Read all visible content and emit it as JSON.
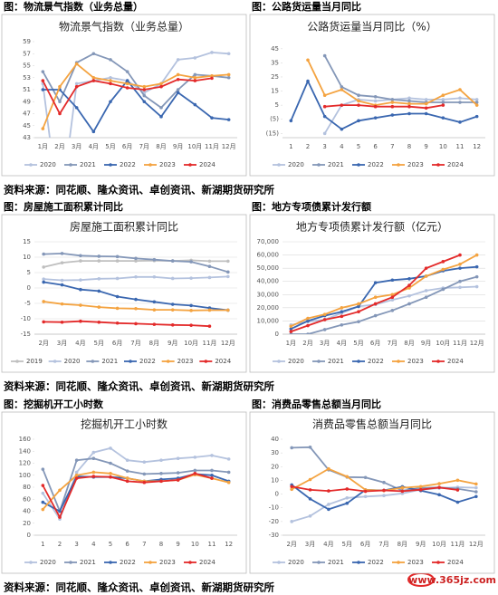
{
  "captions": [
    "图：物流景气指数（业务总量）",
    "图：公路货运量当月同比",
    "图：房屋施工面积累计同比",
    "图：地方专项债累计发行额",
    "图：挖掘机开工小时数",
    "图：消费品零售总额当月同比"
  ],
  "sources": [
    "资料来源：同花顺、隆众资讯、卓创资讯、新湖期货研究所",
    "资料来源：同花顺、隆众资讯、卓创资讯、新湖期货研究所",
    "资料来源：同花顺、隆众资讯、卓创资讯、新湖期货研究所"
  ],
  "watermark": "www.365jz.com",
  "chart_data": [
    {
      "type": "line",
      "title": "物流景气指数（业务总量）",
      "grid": false,
      "legend": "bottom",
      "categories": [
        "1月",
        "2月",
        "3月",
        "4月",
        "5月",
        "6月",
        "7月",
        "8月",
        "9月",
        "10月",
        "11月",
        "12月"
      ],
      "ylim": [
        43,
        59
      ],
      "yticks": [
        43,
        45,
        47,
        49,
        51,
        53,
        55,
        57,
        59
      ],
      "series": [
        {
          "name": "2020",
          "color": "#b4c2de",
          "values": [
            52,
            30,
            52,
            52.5,
            53,
            52.5,
            50.5,
            52,
            56,
            56.3,
            57.2,
            57
          ]
        },
        {
          "name": "2021",
          "color": "#8497b8",
          "values": [
            54,
            49,
            55.5,
            57,
            56,
            54,
            50,
            48,
            51,
            53.5,
            53.3,
            53
          ]
        },
        {
          "name": "2022",
          "color": "#3a67b0",
          "values": [
            51,
            51,
            48,
            44,
            49,
            52.5,
            49,
            46.5,
            50.5,
            48.5,
            46.3,
            46
          ]
        },
        {
          "name": "2023",
          "color": "#f4a340",
          "values": [
            44.5,
            51.5,
            55.3,
            53,
            52.5,
            52,
            51.5,
            52,
            53.5,
            53,
            53.3,
            53.5
          ]
        },
        {
          "name": "2024",
          "color": "#e32a2a",
          "values": [
            52.5,
            47,
            51.5,
            52.5,
            52,
            51.3,
            51,
            51.5,
            52.7,
            52.5,
            52.9,
            null
          ]
        }
      ]
    },
    {
      "type": "line",
      "title": "公路货运量当月同比（%）",
      "grid": false,
      "legend": "bottom",
      "categories": [
        "1",
        "2",
        "3",
        "4",
        "5",
        "6",
        "7",
        "8",
        "9",
        "10",
        "11",
        "12"
      ],
      "ylim": [
        -18,
        50
      ],
      "yticks": [
        {
          "value": -15,
          "label": "(15)"
        },
        {
          "value": -5,
          "label": "(5)"
        },
        5,
        15,
        25,
        35,
        45
      ],
      "series": [
        {
          "name": "2020",
          "color": "#b4c2de",
          "values": [
            null,
            null,
            -15,
            5,
            9,
            8,
            9,
            10,
            9,
            9,
            10,
            9
          ]
        },
        {
          "name": "2021",
          "color": "#8497b8",
          "values": [
            null,
            null,
            40,
            18,
            12,
            11,
            9,
            8,
            7,
            7,
            7,
            7
          ]
        },
        {
          "name": "2022",
          "color": "#3a67b0",
          "values": [
            -6,
            22,
            -3,
            -12,
            -6,
            -4,
            -2,
            -1,
            -1,
            -4,
            -7,
            -3
          ]
        },
        {
          "name": "2023",
          "color": "#f4a340",
          "values": [
            null,
            37,
            12,
            16,
            8,
            5,
            7,
            6,
            6,
            12,
            16,
            5
          ]
        },
        {
          "name": "2024",
          "color": "#e32a2a",
          "values": [
            null,
            null,
            4,
            5,
            5,
            4,
            4,
            4,
            3,
            5,
            null,
            null
          ]
        }
      ]
    },
    {
      "type": "line",
      "title": "房屋施工面积累计同比",
      "grid": true,
      "legend": "bottom",
      "categories": [
        "2月",
        "3月",
        "4月",
        "5月",
        "6月",
        "7月",
        "8月",
        "9月",
        "10月",
        "11月",
        "12月"
      ],
      "ylim": [
        -15,
        15
      ],
      "yticks": [
        -15,
        -10,
        -5,
        0,
        5,
        10,
        15
      ],
      "series": [
        {
          "name": "2019",
          "color": "#bfbfbf",
          "values": [
            6.8,
            8.2,
            8.8,
            8.8,
            8.8,
            8.8,
            8.9,
            8.8,
            9.0,
            8.7,
            8.7
          ]
        },
        {
          "name": "2020",
          "color": "#b4c2de",
          "values": [
            2.9,
            2.5,
            2.6,
            3.0,
            3.1,
            3.6,
            3.6,
            3.1,
            3.2,
            3.4,
            3.7
          ]
        },
        {
          "name": "2021",
          "color": "#8497b8",
          "values": [
            11,
            11.2,
            10.5,
            10.3,
            10.2,
            9.6,
            9.2,
            8.8,
            8.5,
            7.0,
            5.2
          ]
        },
        {
          "name": "2022",
          "color": "#3a67b0",
          "values": [
            1.9,
            1.0,
            -0.5,
            -1.0,
            -2.8,
            -3.7,
            -4.5,
            -5.3,
            -5.7,
            -6.5,
            -7.2
          ]
        },
        {
          "name": "2023",
          "color": "#f4a340",
          "values": [
            -4.4,
            -5.2,
            -5.6,
            -6.2,
            -6.6,
            -6.7,
            -7.1,
            -7.1,
            -7.3,
            -7.2,
            -7.2
          ]
        },
        {
          "name": "2024",
          "color": "#e32a2a",
          "values": [
            -11,
            -11.1,
            -10.8,
            -11.1,
            -11.4,
            -11.6,
            -11.8,
            -12.0,
            -12.1,
            -12.4,
            null
          ]
        }
      ]
    },
    {
      "type": "line",
      "title": "地方专项债累计发行额（亿元）",
      "grid": true,
      "legend": "bottom",
      "categories": [
        "1月",
        "2月",
        "3月",
        "4月",
        "5月",
        "6月",
        "7月",
        "8月",
        "9月",
        "10月",
        "11月",
        "12月"
      ],
      "ylim": [
        0,
        70000
      ],
      "yticks": [
        0,
        {
          "value": 10000,
          "label": "10,000"
        },
        {
          "value": 20000,
          "label": "20,000"
        },
        {
          "value": 30000,
          "label": "30,000"
        },
        {
          "value": 40000,
          "label": "40,000"
        },
        {
          "value": 50000,
          "label": "50,000"
        },
        {
          "value": 60000,
          "label": "60,000"
        },
        {
          "value": 70000,
          "label": "70,000"
        }
      ],
      "series": [
        {
          "name": "2020",
          "color": "#b4c2de",
          "values": [
            7000,
            9500,
            11000,
            16000,
            21000,
            22500,
            26000,
            29000,
            33000,
            35000,
            35500,
            36000
          ]
        },
        {
          "name": "2021",
          "color": "#8497b8",
          "values": [
            0,
            0,
            3500,
            7000,
            9500,
            14000,
            18000,
            23000,
            28000,
            34000,
            40000,
            43500
          ]
        },
        {
          "name": "2022",
          "color": "#3a67b0",
          "values": [
            4000,
            10000,
            14000,
            17000,
            21000,
            39000,
            41000,
            42000,
            44000,
            48000,
            50000,
            51000
          ]
        },
        {
          "name": "2023",
          "color": "#f4a340",
          "values": [
            6000,
            12000,
            15000,
            20000,
            23000,
            28000,
            30000,
            35000,
            44000,
            49000,
            53000,
            60000
          ]
        },
        {
          "name": "2024",
          "color": "#e32a2a",
          "values": [
            2000,
            6500,
            11000,
            13500,
            17000,
            23000,
            28000,
            37000,
            50000,
            55000,
            60000,
            null
          ]
        }
      ]
    },
    {
      "type": "line",
      "title": "挖掘机开工小时数",
      "grid": false,
      "legend": "bottom",
      "categories": [
        "1",
        "2",
        "3",
        "4",
        "5",
        "6",
        "7",
        "8",
        "9",
        "10",
        "11",
        "12"
      ],
      "ylim": [
        0,
        160
      ],
      "yticks": [
        0,
        20,
        40,
        60,
        80,
        100,
        120,
        140,
        160
      ],
      "series": [
        {
          "name": "2020",
          "color": "#b4c2de",
          "values": [
            70,
            27,
            105,
            138,
            145,
            125,
            122,
            125,
            128,
            130,
            133,
            127
          ]
        },
        {
          "name": "2021",
          "color": "#8497b8",
          "values": [
            110,
            40,
            125,
            128,
            120,
            107,
            102,
            103,
            104,
            108,
            108,
            105
          ]
        },
        {
          "name": "2022",
          "color": "#3a67b0",
          "values": [
            55,
            40,
            98,
            97,
            97,
            95,
            90,
            93,
            95,
            102,
            100,
            90
          ]
        },
        {
          "name": "2023",
          "color": "#f4a340",
          "values": [
            43,
            75,
            100,
            105,
            103,
            95,
            90,
            90,
            92,
            101,
            95,
            88
          ]
        },
        {
          "name": "2024",
          "color": "#e32a2a",
          "values": [
            83,
            30,
            95,
            98,
            97,
            90,
            88,
            90,
            92,
            103,
            95,
            null
          ]
        }
      ]
    },
    {
      "type": "line",
      "title": "消费品零售总额当月同比",
      "grid": false,
      "legend": "bottom",
      "categories": [
        "2月",
        "3月",
        "4月",
        "5月",
        "6月",
        "7月",
        "8月",
        "9月",
        "10月",
        "11月",
        "12月"
      ],
      "ylim": [
        -30,
        40
      ],
      "yticks": [
        -30,
        -20,
        -10,
        0,
        10,
        20,
        30,
        40
      ],
      "series": [
        {
          "name": "2020",
          "color": "#b4c2de",
          "values": [
            -20,
            -16,
            -7.5,
            -2.8,
            -1.8,
            -1.1,
            0.5,
            3.3,
            4.3,
            5,
            4.6
          ]
        },
        {
          "name": "2021",
          "color": "#8497b8",
          "values": [
            33.8,
            34.2,
            17.7,
            12.4,
            12.1,
            8.5,
            2.5,
            4.4,
            4.9,
            3.9,
            1.7
          ]
        },
        {
          "name": "2022",
          "color": "#3a67b0",
          "values": [
            6.7,
            -3.5,
            -11.1,
            -6.7,
            3.1,
            2.7,
            5.4,
            2.5,
            -0.5,
            -5.9,
            -1.8
          ]
        },
        {
          "name": "2023",
          "color": "#f4a340",
          "values": [
            3.5,
            10.6,
            18.4,
            12.7,
            3.1,
            2.5,
            4.6,
            5.5,
            7.6,
            10.1,
            7.4
          ]
        },
        {
          "name": "2024",
          "color": "#e32a2a",
          "values": [
            5.5,
            3.1,
            2.3,
            3.7,
            2,
            2.7,
            2.1,
            3.2,
            4.8,
            3,
            null
          ]
        }
      ]
    }
  ]
}
